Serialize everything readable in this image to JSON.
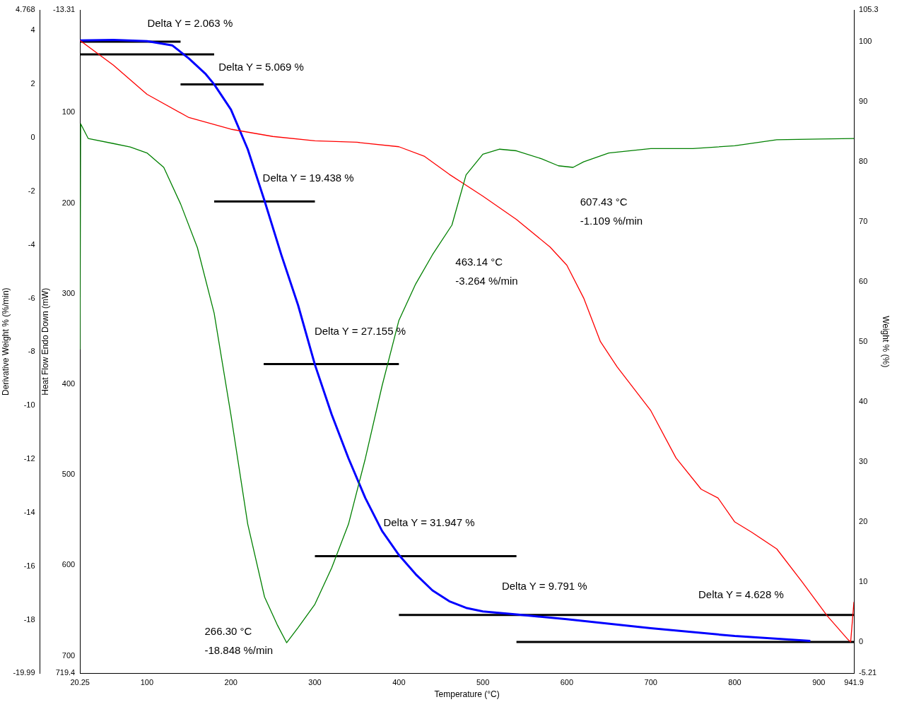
{
  "chart_data": {
    "type": "line",
    "xlabel": "Temperature (°C)",
    "ylabel": "Derivative Weight % (%/min)",
    "y3label": "Heat Flow Endo Down (mW)",
    "y2label": "Weight % (%)",
    "xlim": [
      20.25,
      941.9
    ],
    "xticks": [
      20.25,
      100,
      200,
      300,
      400,
      500,
      600,
      700,
      800,
      900,
      941.9
    ],
    "ylim": [
      -19.99,
      4.768
    ],
    "yticks": [
      4.768,
      4,
      2,
      0,
      -2,
      -4,
      -6,
      -8,
      -10,
      -12,
      -14,
      -16,
      -18,
      -19.99
    ],
    "y3lim": [
      719.4,
      -13.31
    ],
    "y3ticks": [
      -13.31,
      100,
      200,
      300,
      400,
      500,
      600,
      700,
      719.4
    ],
    "y2lim": [
      -5.21,
      105.3
    ],
    "y2ticks": [
      -5.21,
      0,
      10,
      20,
      30,
      40,
      50,
      60,
      70,
      80,
      90,
      100,
      105.3
    ],
    "grid": false,
    "legend": false,
    "marker": "none",
    "line_style": "solid",
    "series": [
      {
        "color": "#008000",
        "x": [
          20.25,
          21,
          30,
          60,
          80,
          100,
          120,
          140,
          160,
          180,
          200,
          220,
          240,
          255,
          266.3,
          280,
          300,
          320,
          340,
          360,
          380,
          400,
          420,
          440,
          463.14,
          480,
          500,
          520,
          540,
          570,
          590,
          607.43,
          620,
          650,
          700,
          750,
          800,
          850,
          900,
          941.9
        ],
        "values": [
          -7.9,
          0.52,
          -0.03,
          -0.22,
          -0.35,
          -0.57,
          -1.11,
          -2.47,
          -4.1,
          -6.55,
          -10.35,
          -14.42,
          -17.14,
          -18.17,
          -18.848,
          -18.28,
          -17.41,
          -16.05,
          -14.42,
          -11.98,
          -9.26,
          -6.82,
          -5.46,
          -4.37,
          -3.264,
          -1.39,
          -0.62,
          -0.43,
          -0.49,
          -0.79,
          -1.05,
          -1.109,
          -0.9,
          -0.57,
          -0.41,
          -0.41,
          -0.3,
          -0.08,
          -0.05,
          -0.03
        ]
      },
      {
        "color": "#ff0000",
        "axis": "y3",
        "x": [
          20.25,
          60,
          100,
          150,
          200,
          250,
          300,
          350,
          400,
          430,
          460,
          500,
          540,
          580,
          600,
          620,
          640,
          660,
          700,
          730,
          760,
          780,
          800,
          820,
          850,
          880,
          910,
          935,
          938,
          941.9
        ],
        "values": [
          20.5,
          47.8,
          79.9,
          105.6,
          118.5,
          126.5,
          131.3,
          132.9,
          137.8,
          148.2,
          168.3,
          192.4,
          218.1,
          248.6,
          268.7,
          304.8,
          353,
          381.1,
          429.3,
          481.5,
          516.1,
          525.7,
          552.2,
          563.5,
          582,
          618.1,
          655.8,
          682.3,
          684.7,
          640.6
        ]
      },
      {
        "color": "#0000ff",
        "axis": "y2",
        "x": [
          20.25,
          60,
          100,
          130,
          150,
          170,
          180,
          200,
          220,
          240,
          260,
          280,
          300,
          320,
          340,
          360,
          380,
          400,
          420,
          440,
          460,
          480,
          500,
          540,
          600,
          700,
          800,
          890
        ],
        "values": [
          100.2,
          100.3,
          100.1,
          99.4,
          97.2,
          94.6,
          92.9,
          88.7,
          82.1,
          73.5,
          64.5,
          56.1,
          46.2,
          37.9,
          30.6,
          24,
          18.5,
          14.5,
          11.3,
          8.6,
          6.8,
          5.7,
          5.1,
          4.6,
          3.8,
          2.3,
          1,
          0.2
        ]
      },
      {
        "color": "#000000",
        "axis": "y2",
        "x": [
          20.25,
          140
        ],
        "values": [
          100,
          100
        ]
      },
      {
        "color": "#000000",
        "axis": "y2",
        "x": [
          20.25,
          180
        ],
        "values": [
          97.9,
          97.9
        ]
      },
      {
        "color": "#000000",
        "axis": "y2",
        "x": [
          140,
          239
        ],
        "values": [
          92.9,
          92.9
        ]
      },
      {
        "color": "#000000",
        "axis": "y2",
        "x": [
          180,
          300
        ],
        "values": [
          73.4,
          73.4
        ]
      },
      {
        "color": "#000000",
        "axis": "y2",
        "x": [
          239,
          400
        ],
        "values": [
          46.3,
          46.3
        ]
      },
      {
        "color": "#000000",
        "axis": "y2",
        "x": [
          300,
          540
        ],
        "values": [
          14.3,
          14.3
        ]
      },
      {
        "color": "#000000",
        "axis": "y2",
        "x": [
          400,
          941.9
        ],
        "values": [
          4.5,
          4.5
        ]
      },
      {
        "color": "#000000",
        "axis": "y2",
        "x": [
          540,
          941.9
        ],
        "values": [
          0,
          0
        ]
      }
    ],
    "annotations": [
      "Delta Y = 2.063 %",
      "Delta Y = 5.069 %",
      "Delta Y = 19.438 %",
      "Delta Y = 27.155 %",
      "Delta Y = 31.947 %",
      "Delta Y = 9.791 %",
      "Delta Y = 4.628 %",
      {
        "text": "266.30 °C\n-18.848 %/min",
        "x": 266.3,
        "y": -18.848
      },
      {
        "text": "463.14 °C\n-3.264 %/min",
        "x": 463.14,
        "y": -3.264
      },
      {
        "text": "607.43 °C\n-1.109 %/min",
        "x": 607.43,
        "y": -1.109
      }
    ]
  }
}
